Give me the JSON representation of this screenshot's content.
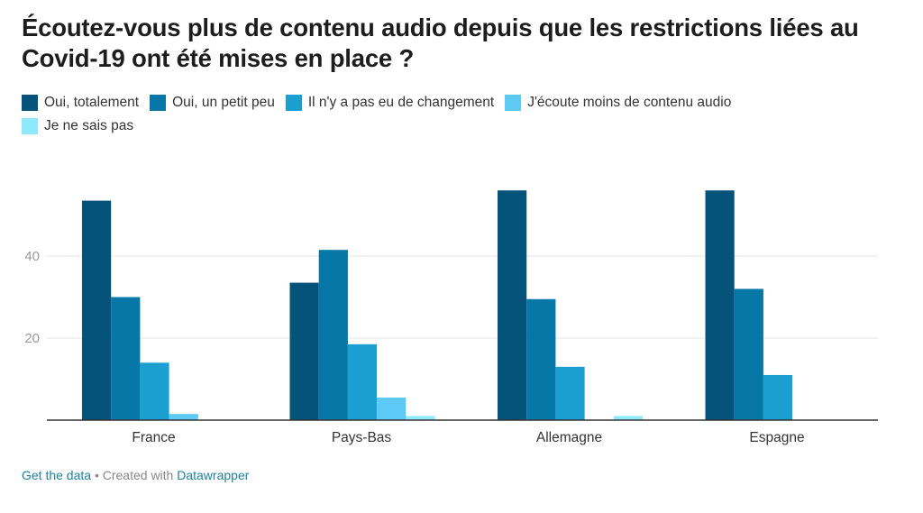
{
  "chart_data": {
    "type": "bar",
    "title": "Écoutez-vous plus de contenu audio depuis que les restrictions liées au Covid-19 ont été mises en place ?",
    "categories": [
      "France",
      "Pays-Bas",
      "Allemagne",
      "Espagne"
    ],
    "series": [
      {
        "name": "Oui, totalement",
        "color": "#05527a",
        "values": [
          53.5,
          33.5,
          56,
          56
        ]
      },
      {
        "name": "Oui, un petit peu",
        "color": "#0677a6",
        "values": [
          30,
          41.5,
          29.5,
          32
        ]
      },
      {
        "name": "Il n'y a pas eu de changement",
        "color": "#1b9fd0",
        "values": [
          14,
          18.5,
          13,
          11
        ]
      },
      {
        "name": "J'écoute moins de contenu audio",
        "color": "#5ccaf5",
        "values": [
          1.5,
          5.5,
          0,
          0
        ]
      },
      {
        "name": "Je ne sais pas",
        "color": "#8ee9fb",
        "values": [
          0,
          1,
          1,
          0
        ]
      }
    ],
    "yticks": [
      20,
      40
    ],
    "ylim": [
      0,
      56
    ],
    "grid": true,
    "legend": "top-left"
  },
  "footer": {
    "get_data": "Get the data",
    "separator": " • Created with ",
    "tool": "Datawrapper"
  }
}
